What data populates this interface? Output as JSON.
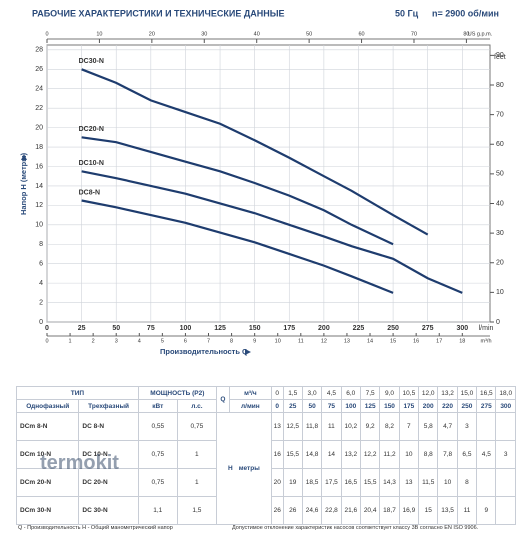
{
  "header": {
    "title": "РАБОЧИЕ ХАРАКТЕРИСТИКИ И ТЕХНИЧЕСКИЕ ДАННЫЕ",
    "frequency": "50 Гц",
    "speed": "n= 2900 об/мин"
  },
  "chart_data": {
    "type": "line",
    "xlabel": "Производительность Q",
    "ylabel": "Напор H (метры)",
    "x_unit": "l/min",
    "x2_unit": "m³/h",
    "x3_unit": "US g.p.m.",
    "y2_unit": "feet",
    "xlim": [
      0,
      320
    ],
    "xticks": [
      0,
      25,
      50,
      75,
      100,
      125,
      150,
      175,
      200,
      225,
      250,
      275,
      300
    ],
    "x2lim": [
      0,
      19.2
    ],
    "x2ticks": [
      0,
      1,
      2,
      3,
      4,
      5,
      6,
      7,
      8,
      9,
      10,
      11,
      12,
      13,
      14,
      15,
      16,
      17,
      18
    ],
    "x3lim": [
      0,
      84.5
    ],
    "x3ticks": [
      0,
      10,
      20,
      30,
      40,
      50,
      60,
      70,
      80
    ],
    "ylim": [
      0,
      28.5
    ],
    "yticks": [
      0,
      2,
      4,
      6,
      8,
      10,
      12,
      14,
      16,
      18,
      20,
      22,
      24,
      26,
      28
    ],
    "y2lim": [
      0,
      93.5
    ],
    "y2ticks": [
      0,
      10,
      20,
      30,
      40,
      50,
      60,
      70,
      80,
      90
    ],
    "grid": true,
    "series": [
      {
        "name": "DC30-N",
        "color": "#1e3c6e",
        "x": [
          25,
          50,
          75,
          100,
          125,
          150,
          175,
          200,
          220,
          250,
          275
        ],
        "values": [
          26,
          24.6,
          22.8,
          21.6,
          20.4,
          18.7,
          16.9,
          15,
          13.5,
          11,
          9
        ]
      },
      {
        "name": "DC20-N",
        "color": "#1e3c6e",
        "x": [
          25,
          50,
          75,
          100,
          125,
          150,
          175,
          200,
          220,
          250
        ],
        "values": [
          19,
          18.5,
          17.5,
          16.5,
          15.5,
          14.3,
          13,
          11.5,
          10,
          8
        ]
      },
      {
        "name": "DC10-N",
        "color": "#1e3c6e",
        "x": [
          25,
          50,
          75,
          100,
          125,
          150,
          175,
          200,
          220,
          250,
          275,
          300
        ],
        "values": [
          15.5,
          14.8,
          14,
          13.2,
          12.2,
          11.2,
          10,
          8.8,
          7.8,
          6.5,
          4.5,
          3
        ]
      },
      {
        "name": "DC8-N",
        "color": "#1e3c6e",
        "x": [
          25,
          50,
          75,
          100,
          125,
          150,
          175,
          200,
          220,
          250
        ],
        "values": [
          12.5,
          11.8,
          11,
          10.2,
          9.2,
          8.2,
          7,
          5.8,
          4.7,
          3
        ]
      }
    ]
  },
  "table": {
    "type_header": "ТИП",
    "power_header": "МОЩНОСТЬ (P2)",
    "q_header": "Q",
    "unit_m3h": "м³/ч",
    "unit_lmin": "л/мин",
    "single_header": "Однофазный",
    "three_header": "Трехфазный",
    "kw_header": "кВт",
    "hp_header": "л.с.",
    "q_m3h": [
      "0",
      "1,5",
      "3,0",
      "4,5",
      "6,0",
      "7,5",
      "9,0",
      "10,5",
      "12,0",
      "13,2",
      "15,0",
      "16,5",
      "18,0"
    ],
    "q_lmin": [
      0,
      25,
      50,
      75,
      100,
      125,
      150,
      175,
      200,
      220,
      250,
      275,
      300
    ],
    "h_label": "H",
    "h_unit": "метры",
    "rows": [
      {
        "single": "DCm 8-N",
        "three": "DC 8-N",
        "kw": "0,55",
        "hp": "0,75",
        "values": [
          "13",
          "12,5",
          "11,8",
          "11",
          "10,2",
          "9,2",
          "8,2",
          "7",
          "5,8",
          "4,7",
          "3"
        ]
      },
      {
        "single": "DCm 10-N",
        "three": "DC 10-N",
        "kw": "0,75",
        "hp": "1",
        "values": [
          "16",
          "15,5",
          "14,8",
          "14",
          "13,2",
          "12,2",
          "11,2",
          "10",
          "8,8",
          "7,8",
          "6,5",
          "4,5",
          "3"
        ]
      },
      {
        "single": "DCm 20-N",
        "three": "DC 20-N",
        "kw": "0,75",
        "hp": "1",
        "values": [
          "20",
          "19",
          "18,5",
          "17,5",
          "16,5",
          "15,5",
          "14,3",
          "13",
          "11,5",
          "10",
          "8"
        ]
      },
      {
        "single": "DCm 30-N",
        "three": "DC 30-N",
        "kw": "1,1",
        "hp": "1,5",
        "values": [
          "26",
          "26",
          "24,6",
          "22,8",
          "21,6",
          "20,4",
          "18,7",
          "16,9",
          "15",
          "13,5",
          "11",
          "9"
        ]
      }
    ]
  },
  "footer": {
    "note": "Q - Производительность   H - Общий манометрический напор",
    "tolerance": "Допустимое отклонение характеристик насосов соответствует классу 3В согласно EN ISO 9906."
  },
  "watermark": "termokit"
}
